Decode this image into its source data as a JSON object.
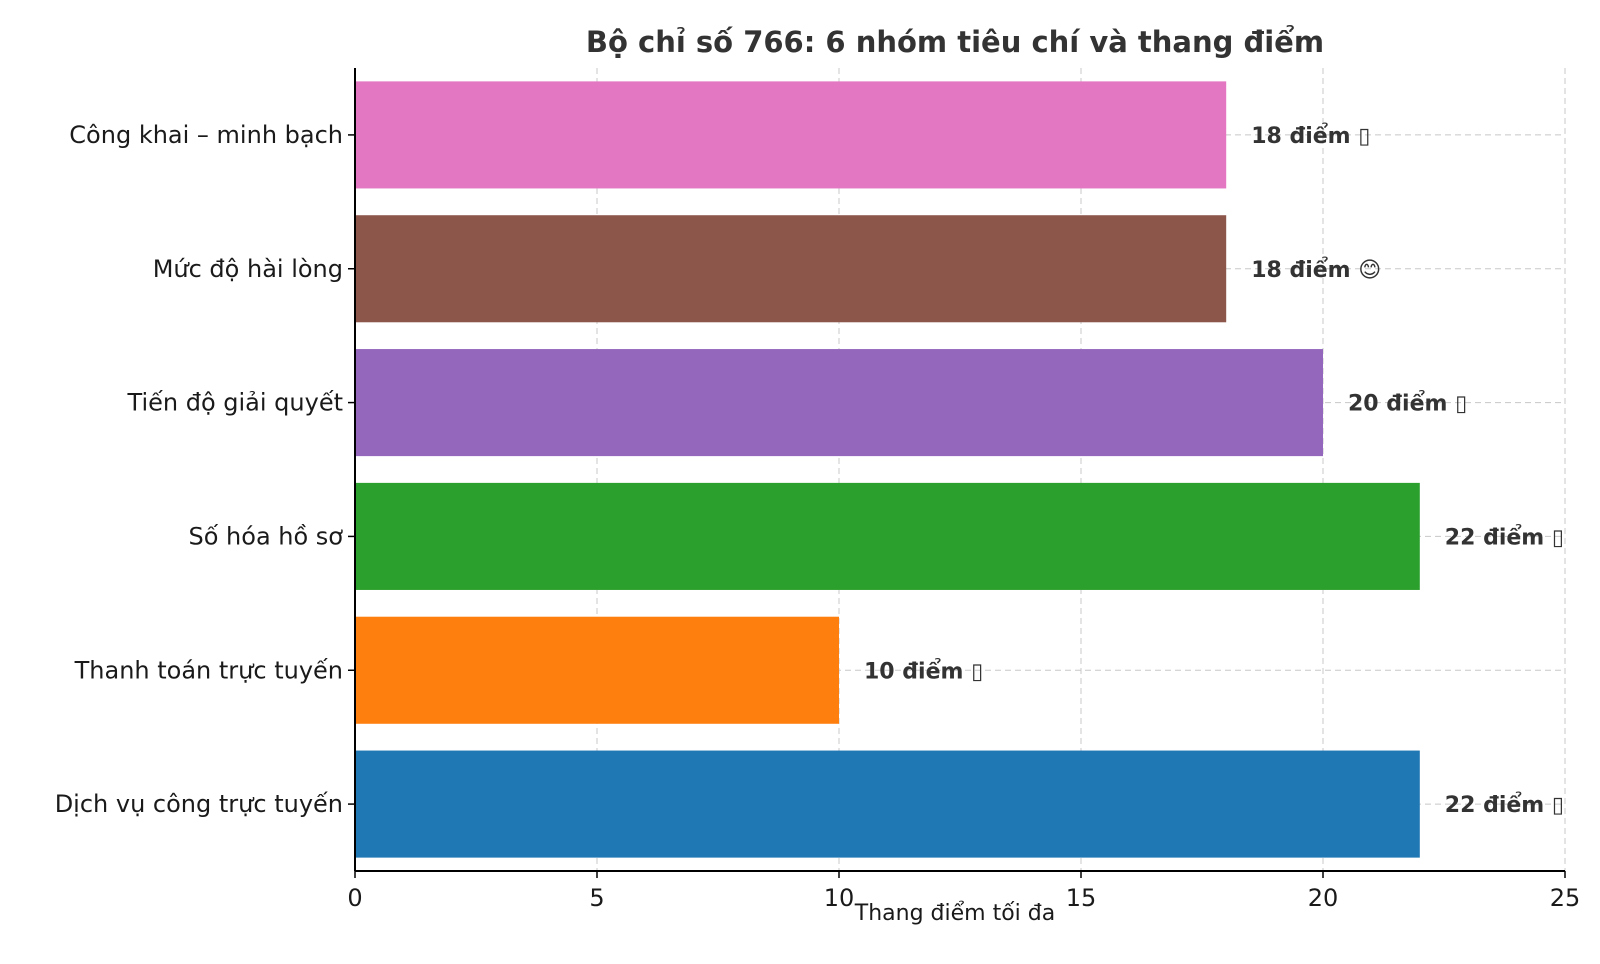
{
  "chart_data": {
    "type": "bar",
    "orientation": "horizontal",
    "title": "Bộ chỉ số 766: 6 nhóm tiêu chí và thang điểm",
    "xlabel": "Thang điểm tối đa",
    "ylabel": "",
    "xlim": [
      0,
      25
    ],
    "xticks": [
      0,
      5,
      10,
      15,
      20,
      25
    ],
    "grid": true,
    "categories": [
      "Dịch vụ công trực tuyến",
      "Thanh toán trực tuyến",
      "Số hóa hồ sơ",
      "Tiến độ giải quyết",
      "Mức độ hài lòng",
      "Công khai – minh bạch"
    ],
    "values": [
      22,
      10,
      22,
      20,
      18,
      18
    ],
    "data_labels": [
      "22 điểm ▯",
      "10 điểm ▯",
      "22 điểm ▯",
      "20 điểm ▯",
      "18 điểm 😊",
      "18 điểm ▯"
    ],
    "colors": [
      "#1f77b4",
      "#ff7f0e",
      "#2ca02c",
      "#9467bd",
      "#8c564b",
      "#e377c2"
    ]
  }
}
